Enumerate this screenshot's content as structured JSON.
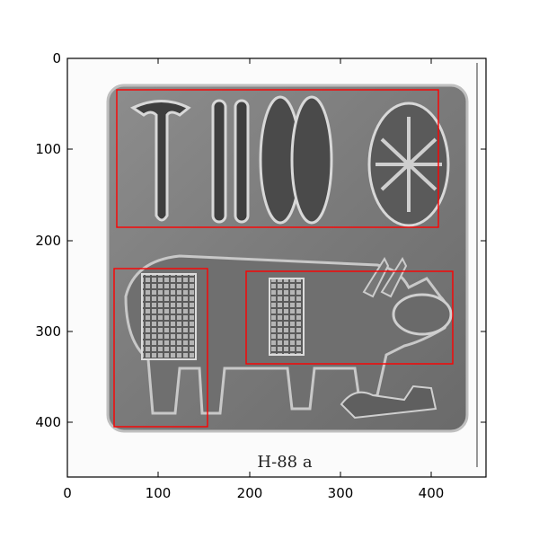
{
  "image_panel": {
    "caption": "H-88 a",
    "xlim": [
      0,
      460
    ],
    "ylim": [
      460,
      0
    ],
    "x_ticks": [
      "0",
      "100",
      "200",
      "300",
      "400"
    ],
    "y_ticks": [
      "0",
      "100",
      "200",
      "300",
      "400"
    ],
    "box_color": "#ff0000"
  }
}
